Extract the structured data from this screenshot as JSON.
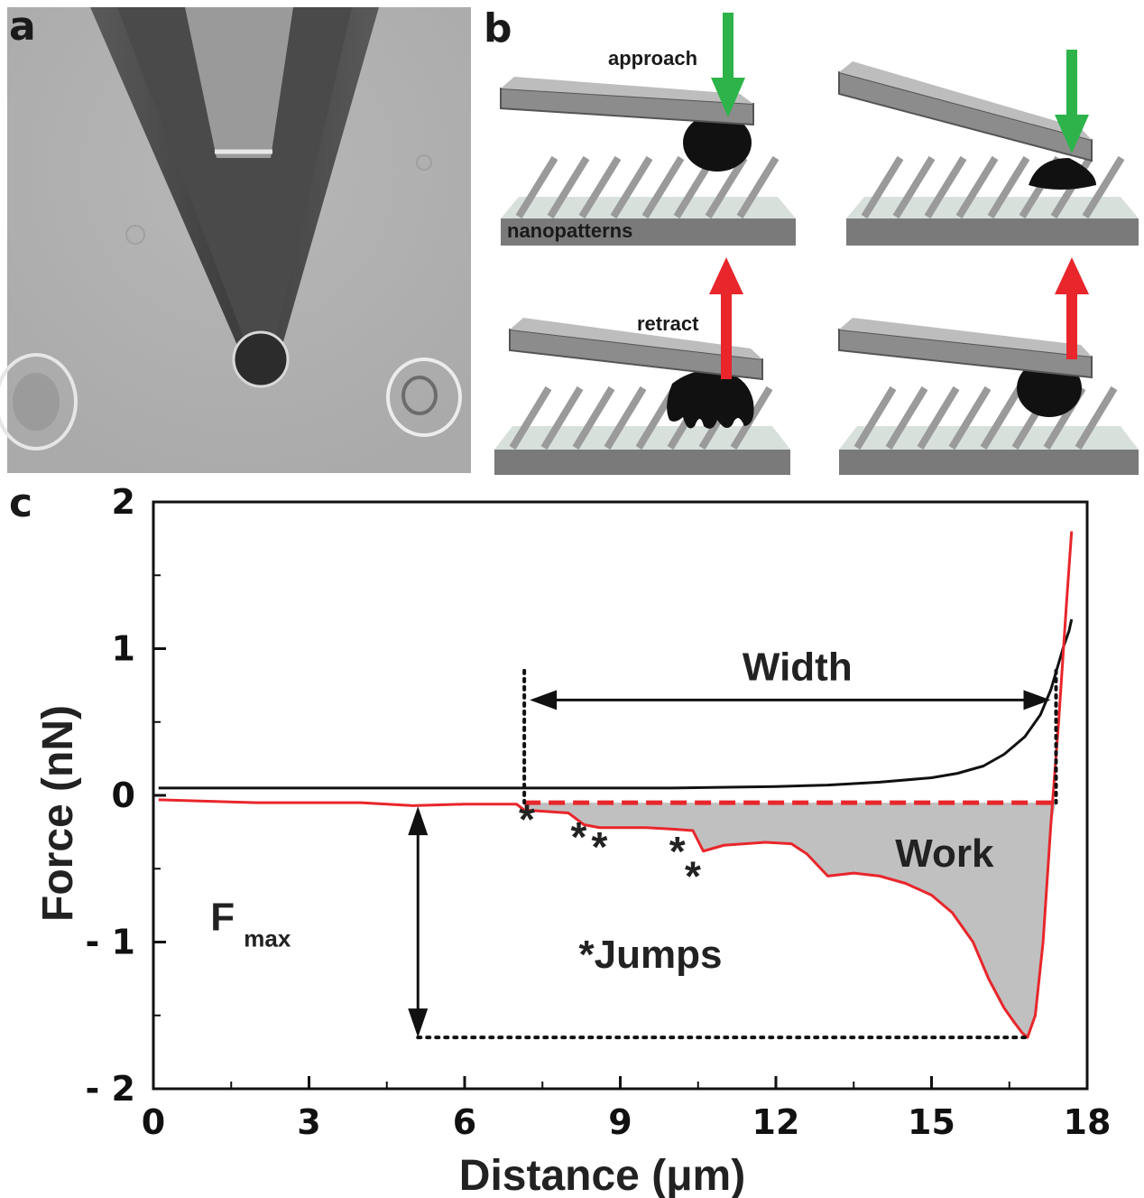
{
  "panels": {
    "a": {
      "label": "a"
    },
    "b": {
      "label": "b",
      "approach_label": "approach",
      "retract_label": "retract",
      "substrate_label": "nanopatterns",
      "colors": {
        "approach_arrow": "#2db34a",
        "retract_arrow": "#e8262b",
        "cantilever": "#8c8c8c",
        "cell": "#111111"
      }
    },
    "c": {
      "label": "c"
    }
  },
  "chart_data": {
    "type": "line",
    "xlabel": "Distance (μm)",
    "ylabel": "Force (nN)",
    "xlim": [
      0,
      18
    ],
    "ylim": [
      -2,
      2
    ],
    "x_ticks": [
      0,
      3,
      6,
      9,
      12,
      15,
      18
    ],
    "y_ticks": [
      {
        "value": 2,
        "label": "2"
      },
      {
        "value": 1,
        "label": "1"
      },
      {
        "value": 0,
        "label": "0"
      },
      {
        "value": -1,
        "label": "- 1"
      },
      {
        "value": -2,
        "label": "- 2"
      }
    ],
    "grid": false,
    "series": [
      {
        "color": "#111111",
        "x": [
          0.1,
          2,
          4,
          6,
          8,
          10,
          12,
          13,
          14,
          15,
          15.5,
          16,
          16.4,
          16.8,
          17.1,
          17.3,
          17.45,
          17.55,
          17.65,
          17.7
        ],
        "y": [
          0.05,
          0.05,
          0.05,
          0.05,
          0.05,
          0.05,
          0.06,
          0.07,
          0.09,
          0.12,
          0.15,
          0.2,
          0.28,
          0.4,
          0.55,
          0.72,
          0.9,
          1.02,
          1.12,
          1.2
        ]
      },
      {
        "color": "#e8262b",
        "x": [
          0.1,
          2,
          4,
          5,
          6,
          7,
          7.15,
          8,
          8.3,
          8.6,
          9,
          9.5,
          10,
          10.4,
          10.6,
          11,
          11.8,
          12.3,
          12.6,
          13,
          13.5,
          14,
          14.5,
          15,
          15.4,
          15.8,
          16.1,
          16.4,
          16.6,
          16.75,
          16.85,
          17.0,
          17.15,
          17.3,
          17.45,
          17.6,
          17.7
        ],
        "y": [
          -0.03,
          -0.05,
          -0.05,
          -0.07,
          -0.06,
          -0.06,
          -0.1,
          -0.12,
          -0.2,
          -0.22,
          -0.22,
          -0.22,
          -0.23,
          -0.24,
          -0.38,
          -0.34,
          -0.32,
          -0.33,
          -0.4,
          -0.55,
          -0.53,
          -0.55,
          -0.6,
          -0.68,
          -0.8,
          -1.0,
          -1.25,
          -1.45,
          -1.55,
          -1.62,
          -1.65,
          -1.5,
          -1.0,
          -0.2,
          0.5,
          1.3,
          1.8
        ]
      }
    ],
    "baseline": {
      "y": -0.05,
      "x_from": 7.15,
      "x_to": 17.4,
      "color": "#e8262b"
    },
    "work_area_color": "#c0c0c0",
    "width_markers": {
      "x_left": 7.15,
      "x_right": 17.4,
      "y_top": 0.85,
      "arrow_y": 0.65
    },
    "fmax": {
      "x": 5.1,
      "y_top": -0.05,
      "y_bottom": -1.65,
      "line_x_to": 16.8
    },
    "annotations": {
      "width": "Width",
      "work": "Work",
      "fmax_main": "F",
      "fmax_sub": "max",
      "jumps": "*Jumps",
      "asterisk": "*"
    },
    "jump_markers": [
      {
        "x": 7.2,
        "y": -0.26
      },
      {
        "x": 8.2,
        "y": -0.38
      },
      {
        "x": 8.6,
        "y": -0.45
      },
      {
        "x": 10.1,
        "y": -0.48
      },
      {
        "x": 10.4,
        "y": -0.65
      }
    ]
  }
}
